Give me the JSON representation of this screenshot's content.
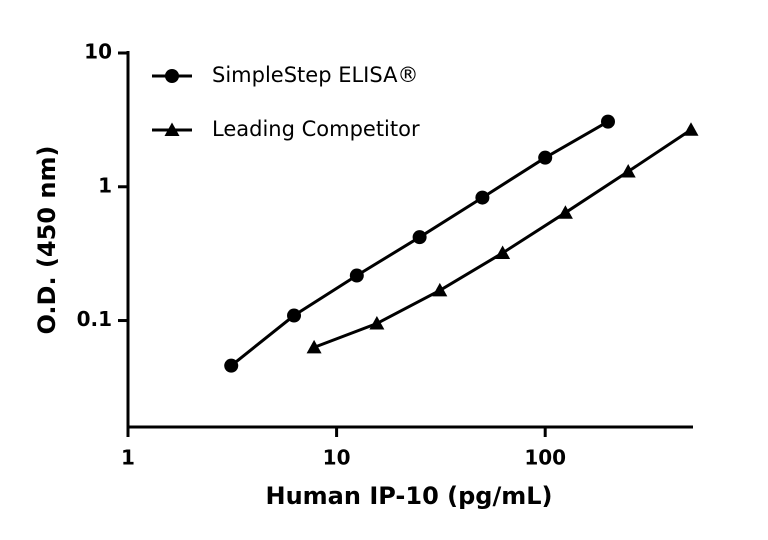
{
  "chart_data": {
    "type": "line",
    "x_label": "Human IP-10 (pg/mL)",
    "y_label": "O.D. (450 nm)",
    "log_x": true,
    "log_y": true,
    "xlim": [
      1,
      500
    ],
    "ylim": [
      0.016,
      10
    ],
    "xticks": [
      1,
      10,
      100
    ],
    "yticks": [
      0.1,
      1,
      10
    ],
    "legend": "upper left",
    "series": [
      {
        "name": "SimpleStep ELISA®",
        "color": "#000000",
        "marker": "circle",
        "x": [
          3.125,
          6.25,
          12.5,
          25,
          50,
          100,
          200
        ],
        "values": [
          0.046,
          0.109,
          0.217,
          0.42,
          0.83,
          1.65,
          3.07
        ]
      },
      {
        "name": "Leading Competitor",
        "color": "#000000",
        "marker": "triangle",
        "x": [
          7.8,
          15.6,
          31.25,
          62.5,
          125,
          250,
          500
        ],
        "values": [
          0.063,
          0.095,
          0.168,
          0.32,
          0.64,
          1.3,
          2.67
        ]
      }
    ]
  }
}
